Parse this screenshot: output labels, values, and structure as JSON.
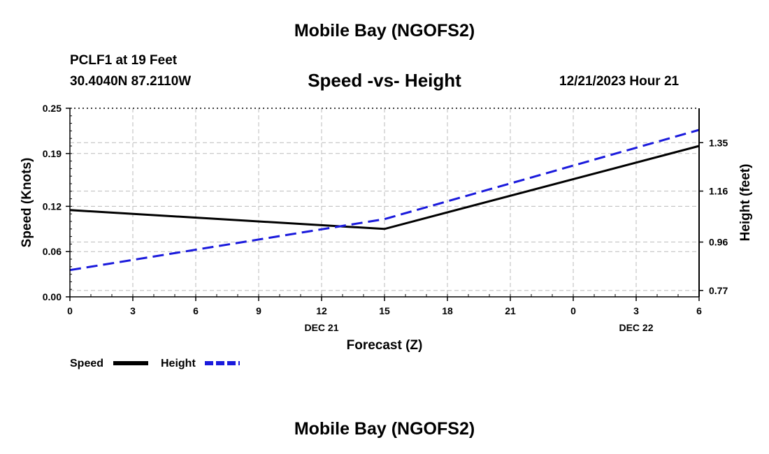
{
  "header": {
    "title": "Mobile Bay (NGOFS2)",
    "station": "PCLF1 at 19 Feet",
    "coords": "30.4040N  87.2110W",
    "subtitle": "Speed -vs- Height",
    "datetime": "12/21/2023 Hour 21"
  },
  "footer": {
    "title": "Mobile Bay (NGOFS2)"
  },
  "colors": {
    "speed": "#000000",
    "height": "#1a1adc",
    "grid": "#bbbbbb"
  },
  "chart_data": {
    "type": "line",
    "xlabel": "Forecast (Z)",
    "x_tick_labels": [
      "0",
      "3",
      "6",
      "9",
      "12",
      "15",
      "18",
      "21",
      "0",
      "3",
      "6"
    ],
    "x_date_labels": [
      {
        "label": "DEC 21",
        "at_hour": 12
      },
      {
        "label": "DEC 22",
        "at_hour": 27
      }
    ],
    "x_range_hours": [
      0,
      30
    ],
    "y_left": {
      "label": "Speed (Knots)",
      "range": [
        0,
        0.25
      ],
      "ticks": [
        0.0,
        0.06,
        0.12,
        0.19,
        0.25
      ],
      "tick_labels": [
        "0.00",
        "0.06",
        "0.12",
        "0.19",
        "0.25"
      ]
    },
    "y_right": {
      "label": "Height (feet)",
      "range": [
        0.745,
        1.485
      ],
      "ticks": [
        0.77,
        0.96,
        1.16,
        1.35
      ],
      "tick_labels": [
        "0.77",
        "0.96",
        "1.16",
        "1.35"
      ]
    },
    "series": [
      {
        "name": "Speed",
        "axis": "left",
        "style": "solid",
        "x": [
          0,
          15,
          30
        ],
        "values": [
          0.115,
          0.09,
          0.2
        ]
      },
      {
        "name": "Height",
        "axis": "right",
        "style": "dashed",
        "x": [
          0,
          15,
          30
        ],
        "values": [
          0.85,
          1.05,
          1.4
        ]
      }
    ],
    "legend": {
      "position": "bottom-left",
      "entries": [
        "Speed",
        "Height"
      ]
    },
    "grid": true
  }
}
